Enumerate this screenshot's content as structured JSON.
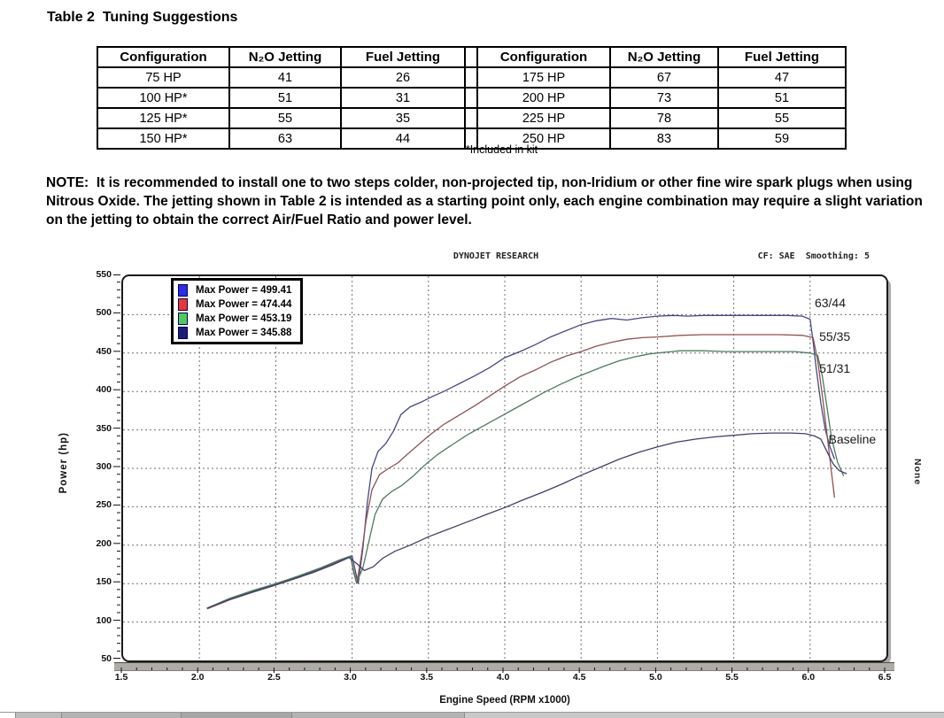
{
  "document": {
    "title": "Table 2  Tuning Suggestions",
    "footnote": "*Included in kit",
    "note_label": "NOTE:",
    "note_text": "It is recommended to install one to two steps colder, non-projected tip, non-Iridium or other fine wire spark plugs when using Nitrous Oxide. The jetting shown in Table 2 is intended as a starting point only, each engine combination may require a slight variation on the jetting to obtain the correct Air/Fuel Ratio and power level."
  },
  "table": {
    "headers": [
      "Configuration",
      "N₂O Jetting",
      "Fuel Jetting"
    ],
    "left_rows": [
      [
        "75 HP",
        "41",
        "26"
      ],
      [
        "100 HP*",
        "51",
        "31"
      ],
      [
        "125 HP*",
        "55",
        "35"
      ],
      [
        "150 HP*",
        "63",
        "44"
      ]
    ],
    "right_rows": [
      [
        "175 HP",
        "67",
        "47"
      ],
      [
        "200 HP",
        "73",
        "51"
      ],
      [
        "225 HP",
        "78",
        "55"
      ],
      [
        "250 HP",
        "83",
        "59"
      ]
    ]
  },
  "chart_data": {
    "type": "line",
    "title": "DYNOJET RESEARCH",
    "correction_text": "CF: SAE  Smoothing: 5",
    "xlabel": "Engine Speed (RPM x1000)",
    "ylabel": "Power (hp)",
    "right_side_label": "None",
    "xlim": [
      1.5,
      6.5
    ],
    "ylim": [
      50,
      550
    ],
    "x_ticks": [
      1.5,
      2,
      2.5,
      3,
      3.5,
      4,
      4.5,
      5,
      5.5,
      6,
      6.5
    ],
    "x_tick_labels": [
      "1.5",
      "2.0",
      "2.5",
      "3.0",
      "3.5",
      "4.0",
      "4.5",
      "5.0",
      "5.5",
      "6.0",
      "6.5"
    ],
    "y_ticks": [
      550,
      500,
      450,
      400,
      350,
      300,
      250,
      200,
      150,
      100,
      50
    ],
    "y_tick_labels": [
      "550",
      "500",
      "450",
      "400",
      "350",
      "300",
      "250",
      "200",
      "150",
      "100",
      "50"
    ],
    "x_minor_step": 0.1,
    "y_minor_step": 10,
    "grid": "dashed",
    "legend_position": "top-left",
    "series": [
      {
        "name": "63/44",
        "legend_label": "Max Power = 499.41",
        "max_power": 499.41,
        "swatch": "#2d2de2",
        "color": "#474787",
        "points": [
          [
            2.05,
            118
          ],
          [
            2.2,
            130
          ],
          [
            2.35,
            140
          ],
          [
            2.5,
            149
          ],
          [
            2.65,
            159
          ],
          [
            2.8,
            170
          ],
          [
            2.92,
            180
          ],
          [
            3.0,
            186
          ],
          [
            3.02,
            168
          ],
          [
            3.04,
            150
          ],
          [
            3.07,
            195
          ],
          [
            3.1,
            255
          ],
          [
            3.13,
            300
          ],
          [
            3.17,
            322
          ],
          [
            3.22,
            332
          ],
          [
            3.27,
            348
          ],
          [
            3.32,
            370
          ],
          [
            3.38,
            380
          ],
          [
            3.45,
            386
          ],
          [
            3.52,
            393
          ],
          [
            3.6,
            400
          ],
          [
            3.7,
            410
          ],
          [
            3.8,
            420
          ],
          [
            3.9,
            431
          ],
          [
            4.0,
            444
          ],
          [
            4.1,
            452
          ],
          [
            4.2,
            461
          ],
          [
            4.3,
            471
          ],
          [
            4.4,
            479
          ],
          [
            4.5,
            487
          ],
          [
            4.6,
            492
          ],
          [
            4.7,
            495
          ],
          [
            4.8,
            493
          ],
          [
            4.9,
            496
          ],
          [
            5.0,
            498
          ],
          [
            5.1,
            499
          ],
          [
            5.2,
            498
          ],
          [
            5.3,
            499
          ],
          [
            5.45,
            499
          ],
          [
            5.6,
            499
          ],
          [
            5.75,
            499
          ],
          [
            5.85,
            499
          ],
          [
            5.95,
            498
          ],
          [
            6.0,
            494
          ],
          [
            6.02,
            465
          ],
          [
            6.04,
            430
          ],
          [
            6.07,
            385
          ],
          [
            6.1,
            350
          ],
          [
            6.13,
            328
          ],
          [
            6.16,
            312
          ]
        ]
      },
      {
        "name": "55/35",
        "legend_label": "Max Power = 474.44",
        "max_power": 474.44,
        "swatch": "#e83737",
        "color": "#8e5252",
        "points": [
          [
            2.05,
            117
          ],
          [
            2.2,
            129
          ],
          [
            2.35,
            139
          ],
          [
            2.5,
            148
          ],
          [
            2.65,
            158
          ],
          [
            2.8,
            169
          ],
          [
            2.92,
            179
          ],
          [
            2.99,
            185
          ],
          [
            3.01,
            165
          ],
          [
            3.03,
            150
          ],
          [
            3.06,
            185
          ],
          [
            3.09,
            230
          ],
          [
            3.13,
            272
          ],
          [
            3.18,
            292
          ],
          [
            3.24,
            300
          ],
          [
            3.3,
            307
          ],
          [
            3.36,
            318
          ],
          [
            3.43,
            330
          ],
          [
            3.5,
            342
          ],
          [
            3.6,
            357
          ],
          [
            3.7,
            369
          ],
          [
            3.8,
            381
          ],
          [
            3.9,
            394
          ],
          [
            4.0,
            407
          ],
          [
            4.1,
            419
          ],
          [
            4.2,
            428
          ],
          [
            4.3,
            438
          ],
          [
            4.4,
            446
          ],
          [
            4.5,
            452
          ],
          [
            4.6,
            459
          ],
          [
            4.7,
            464
          ],
          [
            4.8,
            468
          ],
          [
            4.9,
            470
          ],
          [
            5.0,
            471
          ],
          [
            5.15,
            473
          ],
          [
            5.3,
            474
          ],
          [
            5.5,
            474
          ],
          [
            5.65,
            474
          ],
          [
            5.8,
            474
          ],
          [
            5.95,
            473
          ],
          [
            6.02,
            470
          ],
          [
            6.05,
            440
          ],
          [
            6.08,
            395
          ],
          [
            6.11,
            345
          ],
          [
            6.14,
            295
          ],
          [
            6.16,
            262
          ]
        ]
      },
      {
        "name": "51/31",
        "legend_label": "Max Power = 453.19",
        "max_power": 453.19,
        "swatch": "#4ecb5e",
        "color": "#4e7a5e",
        "points": [
          [
            2.05,
            118
          ],
          [
            2.2,
            131
          ],
          [
            2.35,
            141
          ],
          [
            2.5,
            150
          ],
          [
            2.65,
            160
          ],
          [
            2.8,
            171
          ],
          [
            2.92,
            181
          ],
          [
            2.99,
            186
          ],
          [
            3.01,
            168
          ],
          [
            3.03,
            152
          ],
          [
            3.07,
            170
          ],
          [
            3.11,
            205
          ],
          [
            3.15,
            240
          ],
          [
            3.2,
            260
          ],
          [
            3.26,
            270
          ],
          [
            3.32,
            277
          ],
          [
            3.4,
            290
          ],
          [
            3.48,
            305
          ],
          [
            3.56,
            318
          ],
          [
            3.65,
            330
          ],
          [
            3.75,
            343
          ],
          [
            3.85,
            354
          ],
          [
            3.95,
            365
          ],
          [
            4.05,
            376
          ],
          [
            4.15,
            387
          ],
          [
            4.25,
            398
          ],
          [
            4.35,
            408
          ],
          [
            4.45,
            417
          ],
          [
            4.55,
            425
          ],
          [
            4.65,
            433
          ],
          [
            4.75,
            440
          ],
          [
            4.85,
            445
          ],
          [
            4.95,
            449
          ],
          [
            5.05,
            451
          ],
          [
            5.15,
            453
          ],
          [
            5.3,
            453
          ],
          [
            5.45,
            452
          ],
          [
            5.6,
            452
          ],
          [
            5.75,
            452
          ],
          [
            5.9,
            452
          ],
          [
            6.0,
            450
          ],
          [
            6.05,
            447
          ],
          [
            6.08,
            420
          ],
          [
            6.11,
            380
          ],
          [
            6.14,
            340
          ],
          [
            6.18,
            308
          ],
          [
            6.22,
            290
          ]
        ]
      },
      {
        "name": "Baseline",
        "legend_label": "Max Power = 345.88",
        "max_power": 345.88,
        "swatch": "#1d1d78",
        "color": "#40406a",
        "points": [
          [
            2.05,
            118
          ],
          [
            2.18,
            128
          ],
          [
            2.32,
            137
          ],
          [
            2.46,
            146
          ],
          [
            2.6,
            155
          ],
          [
            2.74,
            164
          ],
          [
            2.88,
            175
          ],
          [
            2.98,
            184
          ],
          [
            3.03,
            176
          ],
          [
            3.08,
            167
          ],
          [
            3.14,
            172
          ],
          [
            3.2,
            183
          ],
          [
            3.28,
            192
          ],
          [
            3.38,
            200
          ],
          [
            3.5,
            211
          ],
          [
            3.62,
            220
          ],
          [
            3.75,
            230
          ],
          [
            3.88,
            240
          ],
          [
            4.0,
            249
          ],
          [
            4.12,
            259
          ],
          [
            4.25,
            269
          ],
          [
            4.38,
            280
          ],
          [
            4.5,
            291
          ],
          [
            4.62,
            301
          ],
          [
            4.75,
            312
          ],
          [
            4.88,
            321
          ],
          [
            5.0,
            328
          ],
          [
            5.12,
            334
          ],
          [
            5.25,
            338
          ],
          [
            5.38,
            341
          ],
          [
            5.5,
            343
          ],
          [
            5.62,
            345
          ],
          [
            5.75,
            346
          ],
          [
            5.88,
            346
          ],
          [
            5.97,
            345
          ],
          [
            6.03,
            342
          ],
          [
            6.07,
            338
          ],
          [
            6.11,
            322
          ],
          [
            6.15,
            306
          ],
          [
            6.19,
            297
          ],
          [
            6.24,
            293
          ]
        ]
      }
    ],
    "annotations": [
      {
        "text": "63/44",
        "x": 6.03,
        "y": 515
      },
      {
        "text": "55/35",
        "x": 6.06,
        "y": 472
      },
      {
        "text": "51/31",
        "x": 6.06,
        "y": 430
      },
      {
        "text": "Baseline",
        "x": 6.12,
        "y": 338
      }
    ]
  }
}
